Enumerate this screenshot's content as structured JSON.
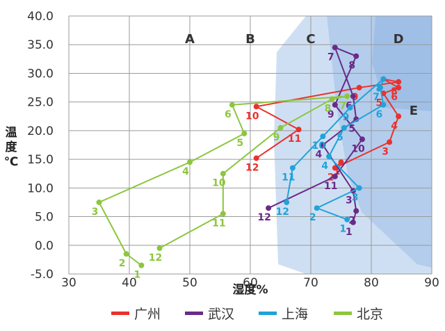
{
  "chart_data": {
    "type": "line",
    "title": "",
    "xlabel": "湿度%",
    "ylabel_chars": [
      "温",
      "度",
      "℃"
    ],
    "xlim": [
      30,
      90
    ],
    "ylim": [
      -5,
      40
    ],
    "x_ticks": [
      "30",
      "40",
      "50",
      "60",
      "70",
      "80",
      "90"
    ],
    "y_ticks": [
      "-5.0",
      "0.0",
      "5.0",
      "10.0",
      "15.0",
      "20.0",
      "25.0",
      "30.0",
      "35.0",
      "40.0"
    ],
    "zone_labels": [
      {
        "text": "A",
        "x": 50,
        "y": 36
      },
      {
        "text": "B",
        "x": 60,
        "y": 36
      },
      {
        "text": "C",
        "x": 70,
        "y": 36
      },
      {
        "text": "D",
        "x": 84.5,
        "y": 36
      },
      {
        "text": "E",
        "x": 87,
        "y": 23.5
      }
    ],
    "series": [
      {
        "name": "广州",
        "color": "#e8322d",
        "points": [
          {
            "m": "1",
            "x": 75,
            "y": 14.5
          },
          {
            "m": "2",
            "x": 74,
            "y": 13.5
          },
          {
            "m": "3",
            "x": 83,
            "y": 18
          },
          {
            "m": "4",
            "x": 84.5,
            "y": 22.5
          },
          {
            "m": "5",
            "x": 82,
            "y": 26.5
          },
          {
            "m": "6",
            "x": 84.5,
            "y": 27.5
          },
          {
            "m": "7",
            "x": 82,
            "y": 29
          },
          {
            "m": "8",
            "x": 84.5,
            "y": 28.5
          },
          {
            "m": "9",
            "x": 78,
            "y": 27.5
          },
          {
            "m": "10",
            "x": 61,
            "y": 24.2
          },
          {
            "m": "11",
            "x": 68,
            "y": 20.2
          },
          {
            "m": "12",
            "x": 61,
            "y": 15.2
          }
        ]
      },
      {
        "name": "武汉",
        "color": "#6a2a88",
        "points": [
          {
            "m": "1",
            "x": 77,
            "y": 4
          },
          {
            "m": "2",
            "x": 77.5,
            "y": 6
          },
          {
            "m": "3",
            "x": 77,
            "y": 9.5
          },
          {
            "m": "4",
            "x": 72,
            "y": 17.5
          },
          {
            "m": "5",
            "x": 77.5,
            "y": 22
          },
          {
            "m": "6",
            "x": 77,
            "y": 26
          },
          {
            "m": "7",
            "x": 74,
            "y": 34.5
          },
          {
            "m": "8",
            "x": 77.5,
            "y": 33
          },
          {
            "m": "9",
            "x": 74,
            "y": 24.5
          },
          {
            "m": "10",
            "x": 78.5,
            "y": 18.5
          },
          {
            "m": "11",
            "x": 74,
            "y": 12
          },
          {
            "m": "12",
            "x": 63,
            "y": 6.5
          }
        ]
      },
      {
        "name": "上海",
        "color": "#1fa3d9",
        "points": [
          {
            "m": "1",
            "x": 76,
            "y": 4.5
          },
          {
            "m": "2",
            "x": 71,
            "y": 6.5
          },
          {
            "m": "3",
            "x": 78,
            "y": 10
          },
          {
            "m": "4",
            "x": 73,
            "y": 15.5
          },
          {
            "m": "5",
            "x": 75.5,
            "y": 20.5
          },
          {
            "m": "6",
            "x": 82,
            "y": 24.5
          },
          {
            "m": "7",
            "x": 81.5,
            "y": 27.5
          },
          {
            "m": "8",
            "x": 82,
            "y": 29
          },
          {
            "m": "9",
            "x": 76.5,
            "y": 24
          },
          {
            "m": "10",
            "x": 72,
            "y": 19
          },
          {
            "m": "11",
            "x": 67,
            "y": 13.5
          },
          {
            "m": "12",
            "x": 66,
            "y": 7.5
          }
        ]
      },
      {
        "name": "北京",
        "color": "#8cc63f",
        "points": [
          {
            "m": "1",
            "x": 42,
            "y": -3.5
          },
          {
            "m": "2",
            "x": 39.5,
            "y": -1.5
          },
          {
            "m": "3",
            "x": 35,
            "y": 7.5
          },
          {
            "m": "4",
            "x": 50,
            "y": 14.5
          },
          {
            "m": "5",
            "x": 59,
            "y": 19.5
          },
          {
            "m": "6",
            "x": 57,
            "y": 24.5
          },
          {
            "m": "7",
            "x": 76,
            "y": 26
          },
          {
            "m": "8",
            "x": 73.5,
            "y": 25.5
          },
          {
            "m": "9",
            "x": 65,
            "y": 20.5
          },
          {
            "m": "10",
            "x": 55.5,
            "y": 12.5
          },
          {
            "m": "11",
            "x": 55.5,
            "y": 5.5
          },
          {
            "m": "12",
            "x": 45,
            "y": -0.5
          }
        ]
      }
    ],
    "legend": {
      "placement": "bottom"
    }
  }
}
